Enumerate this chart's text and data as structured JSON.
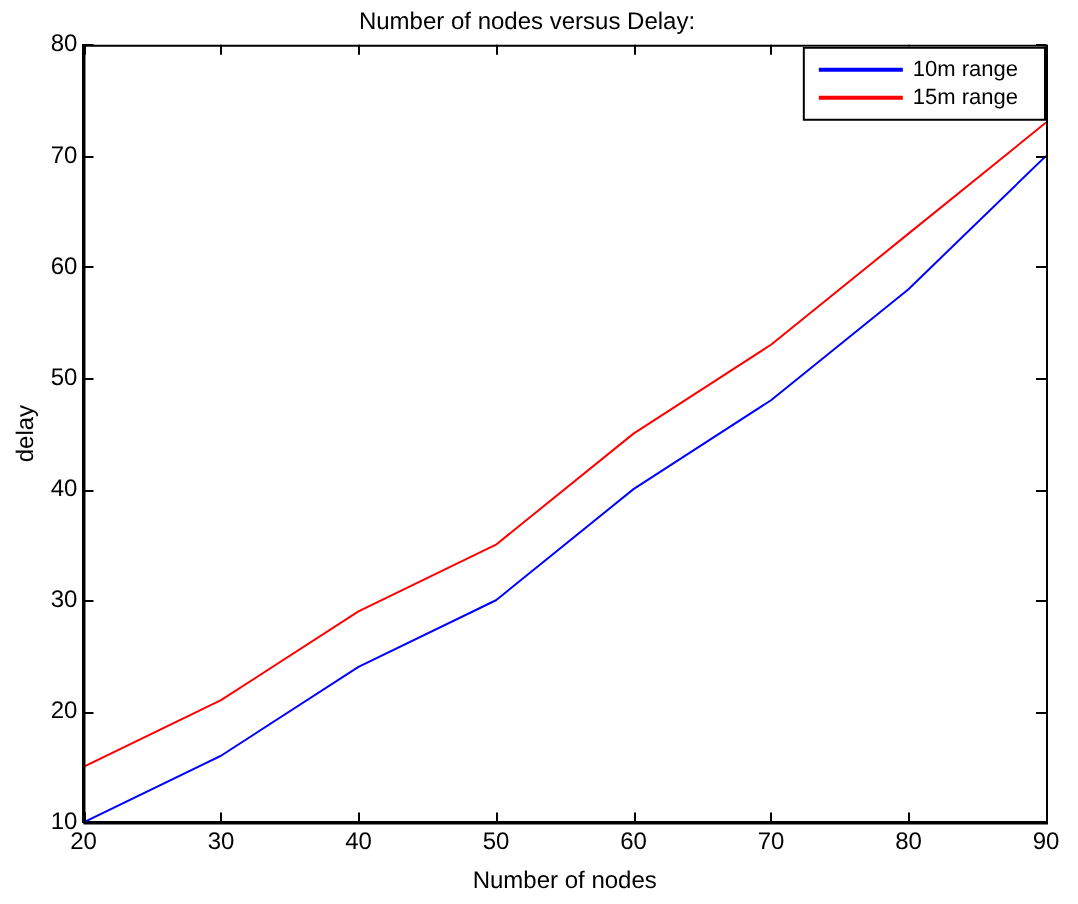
{
  "chart_data": {
    "type": "line",
    "title": "Number of nodes versus Delay:",
    "xlabel": "Number of nodes",
    "ylabel": "delay",
    "x": [
      20,
      30,
      40,
      50,
      60,
      70,
      80,
      90
    ],
    "series": [
      {
        "name": "10m range",
        "color": "#0000ff",
        "values": [
          10,
          16,
          24,
          30,
          40,
          48,
          58,
          70
        ]
      },
      {
        "name": "15m range",
        "color": "#ff0000",
        "values": [
          15,
          21,
          29,
          35,
          45,
          53,
          63,
          73
        ]
      }
    ],
    "xlim": [
      20,
      90
    ],
    "xticks": [
      20,
      30,
      40,
      50,
      60,
      70,
      80,
      90
    ],
    "ylim": [
      10,
      80
    ],
    "yticks": [
      10,
      20,
      30,
      40,
      50,
      60,
      70,
      80
    ],
    "grid": false,
    "legend": "top right",
    "marker": "none",
    "line_style": "solid"
  }
}
